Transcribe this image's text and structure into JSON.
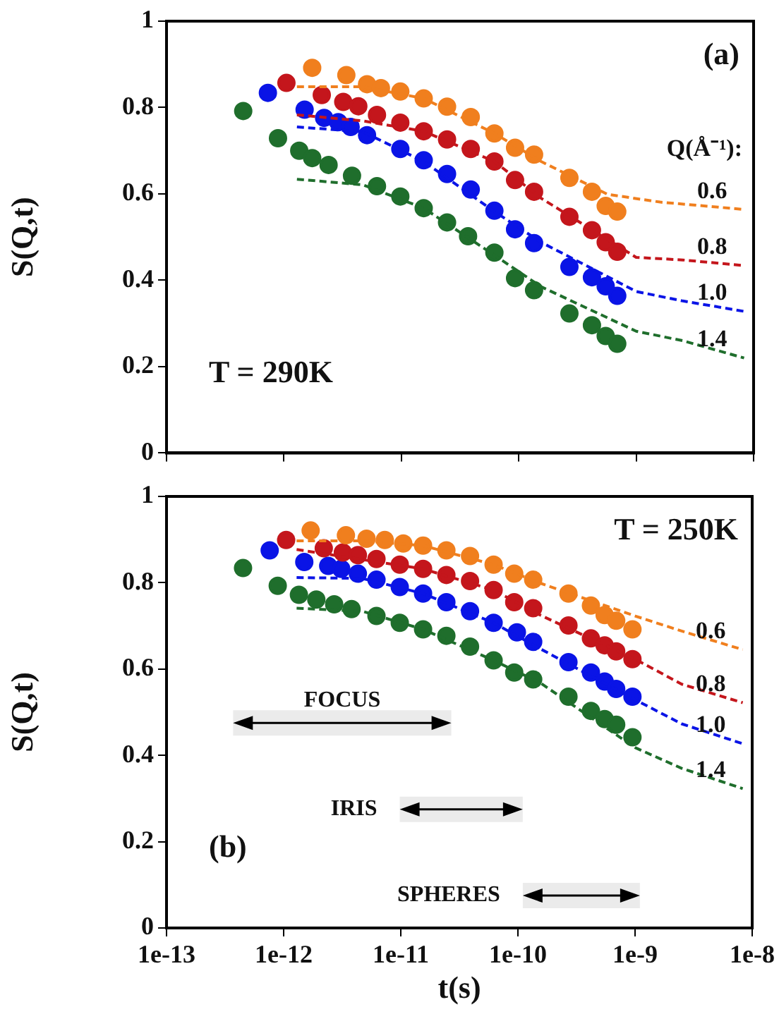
{
  "chart_data": [
    {
      "type": "scatter",
      "ylabel": "S(Q,t)",
      "legend_title": "Q(Å⁻¹):",
      "log": "x",
      "tick_labels": "y",
      "xlim": [
        1e-13,
        1e-08
      ],
      "xticks": [
        {
          "value": 1e-13,
          "label": null
        },
        {
          "value": 1e-12,
          "label": null
        },
        {
          "value": 1e-11,
          "label": null
        },
        {
          "value": 1e-10,
          "label": null
        },
        {
          "value": 1e-09,
          "label": null
        },
        {
          "value": 1e-08,
          "label": null
        }
      ],
      "ylim": [
        0,
        1
      ],
      "yticks": [
        0,
        0.2,
        0.4,
        0.6,
        0.8,
        1
      ],
      "annotations": [
        "(a)",
        "T = 290K"
      ],
      "series": [
        {
          "color": "#f07f1e",
          "marker": "circle",
          "x": [
            1.74e-12,
            3.4e-12,
            5.1e-12,
            6.7e-12,
            9.8e-12,
            1.55e-11,
            2.45e-11,
            3.9e-11,
            6.2e-11,
            9.3e-11,
            1.35e-10,
            2.7e-10,
            4.2e-10,
            5.5e-10,
            6.9e-10
          ],
          "values": [
            0.892,
            0.875,
            0.854,
            0.845,
            0.837,
            0.821,
            0.802,
            0.778,
            0.74,
            0.707,
            0.691,
            0.637,
            0.605,
            0.572,
            0.559
          ]
        },
        {
          "color": "#c4161c",
          "marker": "circle",
          "x": [
            1.05e-12,
            2.1e-12,
            3.2e-12,
            4.3e-12,
            6.2e-12,
            9.8e-12,
            1.55e-11,
            2.45e-11,
            3.9e-11,
            6.2e-11,
            9.3e-11,
            1.35e-10,
            2.7e-10,
            4.2e-10,
            5.5e-10,
            6.9e-10
          ],
          "values": [
            0.857,
            0.829,
            0.813,
            0.803,
            0.783,
            0.765,
            0.745,
            0.726,
            0.704,
            0.675,
            0.632,
            0.605,
            0.547,
            0.516,
            0.488,
            0.466
          ]
        },
        {
          "color": "#0a14e6",
          "marker": "circle",
          "x": [
            7.3e-13,
            1.5e-12,
            2.2e-12,
            2.9e-12,
            3.7e-12,
            5.1e-12,
            9.8e-12,
            1.55e-11,
            2.45e-11,
            3.9e-11,
            6.2e-11,
            9.3e-11,
            1.35e-10,
            2.7e-10,
            4.2e-10,
            5.5e-10,
            6.9e-10
          ],
          "values": [
            0.834,
            0.795,
            0.776,
            0.766,
            0.755,
            0.736,
            0.704,
            0.678,
            0.646,
            0.61,
            0.561,
            0.518,
            0.486,
            0.431,
            0.407,
            0.386,
            0.364
          ]
        },
        {
          "color": "#1f6e2c",
          "marker": "circle",
          "x": [
            4.5e-13,
            8.9e-13,
            1.35e-12,
            1.74e-12,
            2.4e-12,
            3.8e-12,
            6.2e-12,
            9.8e-12,
            1.55e-11,
            2.45e-11,
            3.7e-11,
            6.2e-11,
            9.3e-11,
            1.35e-10,
            2.7e-10,
            4.2e-10,
            5.5e-10,
            6.9e-10
          ],
          "values": [
            0.792,
            0.729,
            0.7,
            0.683,
            0.667,
            0.642,
            0.618,
            0.594,
            0.567,
            0.534,
            0.502,
            0.464,
            0.405,
            0.377,
            0.323,
            0.296,
            0.271,
            0.253
          ]
        },
        {
          "name": "0.6",
          "type": "line",
          "line_style": "dashed",
          "marker": "none",
          "color": "#f07f1e",
          "x": [
            1.29e-12,
            4.7e-12,
            1.55e-11,
            6.2e-11,
            1.55e-10,
            5.7e-10,
            1.6e-09,
            8.3e-09
          ],
          "values": [
            0.848,
            0.848,
            0.821,
            0.74,
            0.675,
            0.599,
            0.581,
            0.564
          ]
        },
        {
          "name": "0.8",
          "type": "line",
          "line_style": "dashed",
          "marker": "none",
          "color": "#c4161c",
          "x": [
            1.29e-12,
            4.7e-12,
            1.55e-11,
            6.2e-11,
            1.55e-10,
            1e-09,
            2.5e-09,
            8.3e-09
          ],
          "values": [
            0.783,
            0.769,
            0.745,
            0.675,
            0.59,
            0.453,
            0.447,
            0.434
          ]
        },
        {
          "name": "1.0",
          "type": "line",
          "line_style": "dashed",
          "marker": "none",
          "color": "#0a14e6",
          "x": [
            1.29e-12,
            4.7e-12,
            1.55e-11,
            6.2e-11,
            1.55e-10,
            1e-09,
            2.5e-09,
            8.3e-09
          ],
          "values": [
            0.755,
            0.744,
            0.675,
            0.559,
            0.488,
            0.374,
            0.352,
            0.328
          ]
        },
        {
          "name": "1.4",
          "type": "line",
          "line_style": "dashed",
          "marker": "none",
          "color": "#1f6e2c",
          "x": [
            1.29e-12,
            4.7e-12,
            1.55e-11,
            6.2e-11,
            1.55e-10,
            1e-09,
            2.5e-09,
            8.3e-09
          ],
          "values": [
            0.634,
            0.621,
            0.567,
            0.458,
            0.385,
            0.282,
            0.26,
            0.22
          ]
        }
      ]
    },
    {
      "type": "scatter",
      "xlabel": "t(s)",
      "ylabel": "S(Q,t)",
      "log": "x",
      "xlim": [
        1e-13,
        1e-08
      ],
      "xticks": [
        {
          "value": 1e-13,
          "label": "1e-13"
        },
        {
          "value": 1e-12,
          "label": "1e-12"
        },
        {
          "value": 1e-11,
          "label": "1e-11"
        },
        {
          "value": 1e-10,
          "label": "1e-10"
        },
        {
          "value": 1e-09,
          "label": "1e-9"
        },
        {
          "value": 1e-08,
          "label": "1e-8"
        }
      ],
      "ylim": [
        0,
        1
      ],
      "yticks": [
        0,
        0.2,
        0.4,
        0.6,
        0.8,
        1
      ],
      "annotations": [
        "T = 250K",
        "(b)"
      ],
      "bands": [
        {
          "axis": "x",
          "from": 3.7e-13,
          "to": 2.7e-11,
          "label": "FOCUS"
        },
        {
          "axis": "x",
          "from": 9.8e-12,
          "to": 1.1e-10,
          "label": "IRIS"
        },
        {
          "axis": "x",
          "from": 1.1e-10,
          "to": 1.1e-09,
          "label": "SPHERES"
        }
      ],
      "series": [
        {
          "color": "#f07f1e",
          "marker": "circle",
          "x": [
            1.7e-12,
            3.4e-12,
            5.1e-12,
            7.3e-12,
            1.05e-11,
            1.55e-11,
            2.45e-11,
            3.9e-11,
            6.2e-11,
            9.3e-11,
            1.35e-10,
            2.7e-10,
            4.2e-10,
            5.5e-10,
            6.9e-10,
            9.5e-10
          ],
          "values": [
            0.921,
            0.91,
            0.902,
            0.899,
            0.891,
            0.886,
            0.875,
            0.862,
            0.842,
            0.821,
            0.807,
            0.775,
            0.747,
            0.725,
            0.712,
            0.692
          ]
        },
        {
          "color": "#c4161c",
          "marker": "circle",
          "x": [
            1.05e-12,
            2.2e-12,
            3.2e-12,
            4.3e-12,
            6.2e-12,
            9.8e-12,
            1.55e-11,
            2.45e-11,
            3.9e-11,
            6.2e-11,
            9.3e-11,
            1.35e-10,
            2.7e-10,
            4.2e-10,
            5.5e-10,
            6.9e-10,
            9.5e-10
          ],
          "values": [
            0.899,
            0.88,
            0.87,
            0.864,
            0.855,
            0.842,
            0.832,
            0.818,
            0.804,
            0.783,
            0.755,
            0.741,
            0.701,
            0.671,
            0.655,
            0.641,
            0.623
          ]
        },
        {
          "color": "#0a14e6",
          "marker": "circle",
          "x": [
            7.6e-13,
            1.5e-12,
            2.4e-12,
            3.1e-12,
            4.3e-12,
            6.2e-12,
            9.8e-12,
            1.55e-11,
            2.45e-11,
            3.9e-11,
            6.2e-11,
            9.8e-11,
            1.35e-10,
            2.7e-10,
            4.2e-10,
            5.5e-10,
            6.9e-10,
            9.5e-10
          ],
          "values": [
            0.875,
            0.848,
            0.839,
            0.832,
            0.821,
            0.807,
            0.79,
            0.775,
            0.755,
            0.734,
            0.707,
            0.685,
            0.663,
            0.616,
            0.592,
            0.571,
            0.554,
            0.536
          ]
        },
        {
          "color": "#1f6e2c",
          "marker": "circle",
          "x": [
            4.5e-13,
            8.9e-13,
            1.35e-12,
            1.9e-12,
            2.7e-12,
            3.8e-12,
            6.2e-12,
            9.8e-12,
            1.55e-11,
            2.45e-11,
            3.9e-11,
            6.2e-11,
            9.3e-11,
            1.35e-10,
            2.7e-10,
            4.2e-10,
            5.5e-10,
            6.9e-10,
            9.5e-10
          ],
          "values": [
            0.834,
            0.793,
            0.772,
            0.761,
            0.75,
            0.739,
            0.723,
            0.707,
            0.692,
            0.677,
            0.652,
            0.62,
            0.592,
            0.576,
            0.536,
            0.503,
            0.484,
            0.471,
            0.442
          ]
        },
        {
          "name": "0.6",
          "type": "line",
          "line_style": "dashed",
          "marker": "none",
          "color": "#f07f1e",
          "x": [
            1.29e-12,
            4.7e-12,
            1.55e-11,
            6.2e-11,
            1.55e-10,
            1e-09,
            2.5e-09,
            8.3e-09
          ],
          "values": [
            0.897,
            0.897,
            0.886,
            0.842,
            0.799,
            0.723,
            0.688,
            0.645
          ]
        },
        {
          "name": "0.8",
          "type": "line",
          "line_style": "dashed",
          "marker": "none",
          "color": "#c4161c",
          "x": [
            1.29e-12,
            1.55e-11,
            6.2e-11,
            1.55e-10,
            1e-09,
            2.5e-09,
            8.3e-09
          ],
          "values": [
            0.877,
            0.832,
            0.783,
            0.725,
            0.623,
            0.565,
            0.522
          ]
        },
        {
          "name": "1.0",
          "type": "line",
          "line_style": "dashed",
          "marker": "none",
          "color": "#0a14e6",
          "x": [
            1.29e-12,
            4.7e-12,
            1.55e-11,
            6.2e-11,
            1.55e-10,
            1e-09,
            2.5e-09,
            8.3e-09
          ],
          "values": [
            0.812,
            0.81,
            0.775,
            0.707,
            0.647,
            0.529,
            0.473,
            0.427
          ]
        },
        {
          "name": "1.4",
          "type": "line",
          "line_style": "dashed",
          "marker": "none",
          "color": "#1f6e2c",
          "x": [
            1.29e-12,
            4.7e-12,
            1.55e-11,
            6.2e-11,
            1.55e-10,
            1e-09,
            2.5e-09,
            8.3e-09
          ],
          "values": [
            0.741,
            0.734,
            0.692,
            0.62,
            0.568,
            0.418,
            0.37,
            0.323
          ]
        }
      ]
    }
  ]
}
